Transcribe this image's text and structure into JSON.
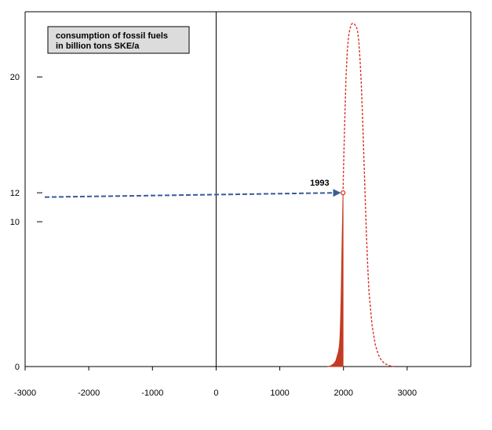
{
  "chart_data": {
    "type": "area",
    "title": "",
    "xlabel": "",
    "ylabel": "",
    "legend": {
      "lines": [
        "consumption of fossil fuels",
        "in billion tons SKE/a"
      ],
      "placement": "top-left"
    },
    "xlim": [
      -3000,
      4000
    ],
    "ylim": [
      0,
      23.5
    ],
    "x_ticks": [
      -3000,
      -2000,
      -1000,
      0,
      1000,
      2000,
      3000
    ],
    "y_ticks": [
      0,
      10,
      12,
      20
    ],
    "grid": false,
    "series": [
      {
        "style": "filled",
        "color": "#c43a22",
        "x": [
          1750,
          1800,
          1850,
          1880,
          1900,
          1920,
          1935,
          1945,
          1950,
          1955,
          1960,
          1965,
          1970,
          1975,
          1980,
          1985,
          1990,
          1993
        ],
        "y": [
          0,
          0.05,
          0.2,
          0.4,
          0.7,
          1.0,
          1.4,
          2.0,
          2.6,
          3.3,
          4.2,
          5.2,
          6.5,
          7.8,
          9.0,
          10.0,
          11.2,
          12.0
        ]
      },
      {
        "style": "dashed",
        "color": "#d9342b",
        "x": [
          1993,
          2000,
          2020,
          2040,
          2060,
          2080,
          2100,
          2120,
          2140,
          2160,
          2180,
          2200,
          2220,
          2240,
          2260,
          2280,
          2300,
          2320,
          2340,
          2360,
          2380,
          2400,
          2450,
          2500,
          2550,
          2600,
          2650,
          2700,
          2750,
          2800
        ],
        "y": [
          12,
          13.5,
          17,
          20,
          21.8,
          22.8,
          23.3,
          23.6,
          23.7,
          23.7,
          23.6,
          23.5,
          23.2,
          22.5,
          21.2,
          19.5,
          17.2,
          14.5,
          11.8,
          9.2,
          7.0,
          5.2,
          2.8,
          1.5,
          0.8,
          0.4,
          0.2,
          0.1,
          0.03,
          0
        ]
      }
    ],
    "annotations": [
      {
        "label": "1993",
        "arrow_color": "#3c5a99",
        "from": [
          -3000,
          11.7
        ],
        "to": [
          1850,
          12.0
        ],
        "point": [
          1993,
          12
        ],
        "point_color": "#d9342b"
      }
    ]
  }
}
